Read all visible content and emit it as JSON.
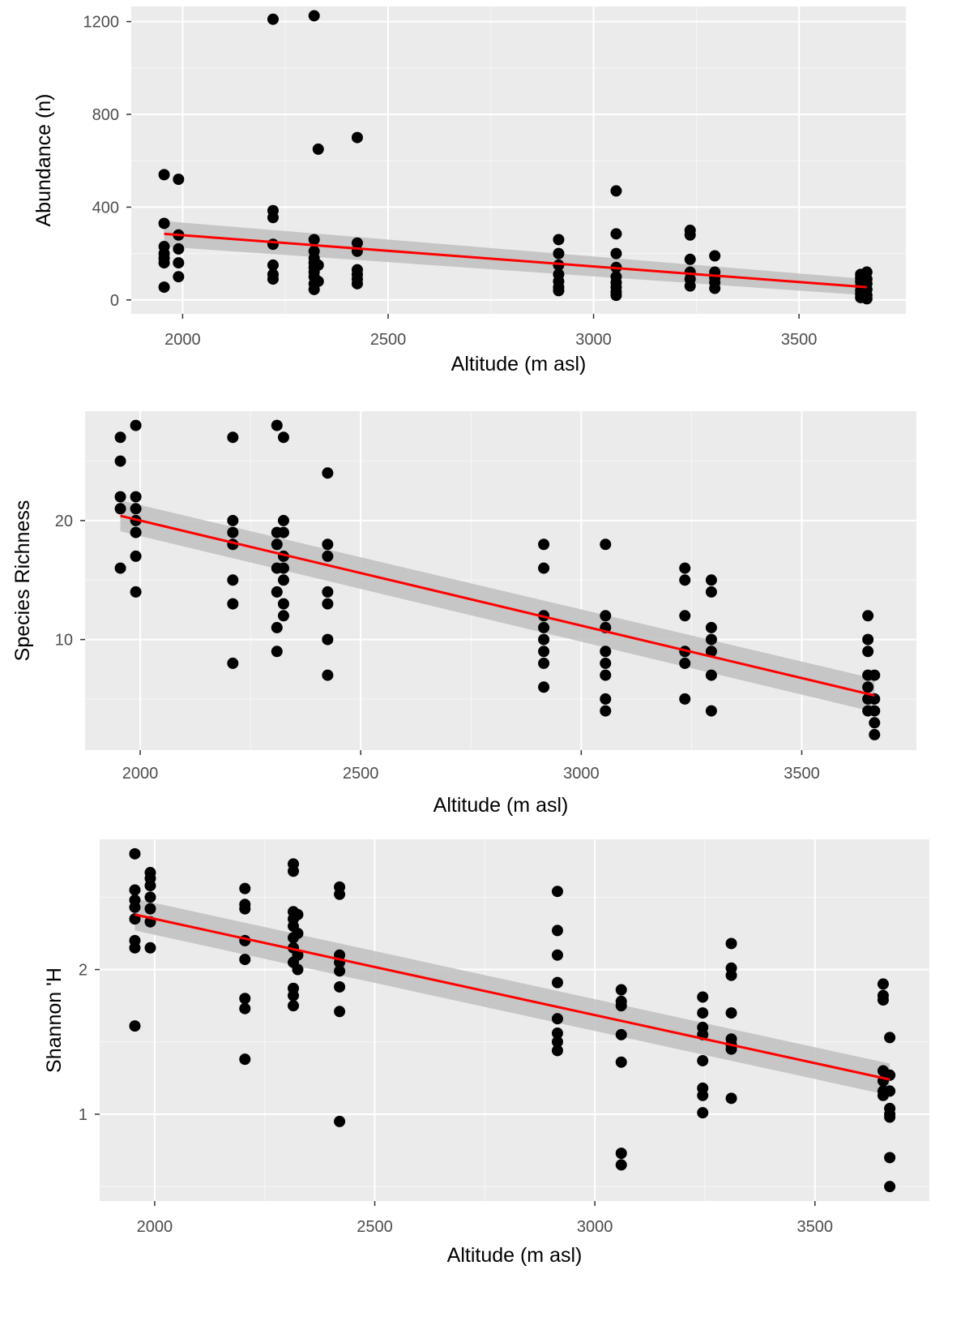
{
  "colors": {
    "panel_bg": "#ebebeb",
    "grid_major": "#ffffff",
    "point": "#000000",
    "fit_line": "#ff0000",
    "ci_band": "#bfbfbf",
    "tick_text": "#4d4d4d",
    "axis_title": "#000000"
  },
  "chart_data": [
    {
      "type": "scatter",
      "title": "",
      "xlabel": "Altitude (m asl)",
      "ylabel": "Abundance (n)",
      "xlim": [
        1875,
        3760
      ],
      "ylim": [
        -60,
        1265
      ],
      "x_ticks": [
        2000,
        2500,
        3000,
        3500
      ],
      "y_ticks": [
        0,
        400,
        800,
        1200
      ],
      "x_tick_labels": [
        "2000",
        "2500",
        "3000",
        "3500"
      ],
      "y_tick_labels": [
        "0",
        "400",
        "800",
        "1200"
      ],
      "grid": true,
      "legend": "none",
      "points": [
        [
          1955,
          540
        ],
        [
          1955,
          330
        ],
        [
          1955,
          230
        ],
        [
          1955,
          200
        ],
        [
          1955,
          180
        ],
        [
          1955,
          160
        ],
        [
          1955,
          55
        ],
        [
          1990,
          520
        ],
        [
          1990,
          280
        ],
        [
          1990,
          220
        ],
        [
          1990,
          160
        ],
        [
          1990,
          100
        ],
        [
          2220,
          1210
        ],
        [
          2220,
          385
        ],
        [
          2220,
          355
        ],
        [
          2220,
          240
        ],
        [
          2220,
          150
        ],
        [
          2220,
          110
        ],
        [
          2220,
          90
        ],
        [
          2320,
          1225
        ],
        [
          2320,
          260
        ],
        [
          2320,
          210
        ],
        [
          2320,
          180
        ],
        [
          2320,
          160
        ],
        [
          2320,
          140
        ],
        [
          2320,
          120
        ],
        [
          2320,
          100
        ],
        [
          2320,
          70
        ],
        [
          2320,
          45
        ],
        [
          2330,
          650
        ],
        [
          2330,
          150
        ],
        [
          2330,
          80
        ],
        [
          2425,
          700
        ],
        [
          2425,
          245
        ],
        [
          2425,
          210
        ],
        [
          2425,
          130
        ],
        [
          2425,
          110
        ],
        [
          2425,
          90
        ],
        [
          2425,
          70
        ],
        [
          2915,
          260
        ],
        [
          2915,
          200
        ],
        [
          2915,
          150
        ],
        [
          2915,
          110
        ],
        [
          2915,
          80
        ],
        [
          2915,
          55
        ],
        [
          2915,
          40
        ],
        [
          3055,
          470
        ],
        [
          3055,
          285
        ],
        [
          3055,
          200
        ],
        [
          3055,
          140
        ],
        [
          3055,
          100
        ],
        [
          3055,
          75
        ],
        [
          3055,
          55
        ],
        [
          3055,
          35
        ],
        [
          3055,
          20
        ],
        [
          3235,
          300
        ],
        [
          3235,
          280
        ],
        [
          3235,
          175
        ],
        [
          3235,
          120
        ],
        [
          3235,
          90
        ],
        [
          3235,
          60
        ],
        [
          3295,
          190
        ],
        [
          3295,
          120
        ],
        [
          3295,
          95
        ],
        [
          3295,
          75
        ],
        [
          3295,
          50
        ],
        [
          3650,
          110
        ],
        [
          3650,
          95
        ],
        [
          3650,
          80
        ],
        [
          3650,
          60
        ],
        [
          3650,
          40
        ],
        [
          3650,
          25
        ],
        [
          3650,
          10
        ],
        [
          3665,
          120
        ],
        [
          3665,
          90
        ],
        [
          3665,
          70
        ],
        [
          3665,
          45
        ],
        [
          3665,
          20
        ],
        [
          3665,
          5
        ]
      ],
      "fit": {
        "x": [
          1955,
          3665
        ],
        "y": [
          285,
          55
        ]
      },
      "ci": {
        "lower": [
          230,
          20
        ],
        "upper": [
          340,
          90
        ]
      }
    },
    {
      "type": "scatter",
      "title": "",
      "xlabel": "Altitude (m asl)",
      "ylabel": "Species Richness",
      "xlim": [
        1875,
        3760
      ],
      "ylim": [
        0.7,
        29.2
      ],
      "x_ticks": [
        2000,
        2500,
        3000,
        3500
      ],
      "y_ticks": [
        10,
        20
      ],
      "x_tick_labels": [
        "2000",
        "2500",
        "3000",
        "3500"
      ],
      "y_tick_labels": [
        "10",
        "20"
      ],
      "grid": true,
      "legend": "none",
      "points": [
        [
          1955,
          27
        ],
        [
          1955,
          25
        ],
        [
          1955,
          22
        ],
        [
          1955,
          21
        ],
        [
          1955,
          16
        ],
        [
          1990,
          28
        ],
        [
          1990,
          22
        ],
        [
          1990,
          21
        ],
        [
          1990,
          20
        ],
        [
          1990,
          19
        ],
        [
          1990,
          17
        ],
        [
          1990,
          14
        ],
        [
          2210,
          27
        ],
        [
          2210,
          20
        ],
        [
          2210,
          19
        ],
        [
          2210,
          18
        ],
        [
          2210,
          15
        ],
        [
          2210,
          13
        ],
        [
          2210,
          8
        ],
        [
          2310,
          28
        ],
        [
          2310,
          19
        ],
        [
          2310,
          18
        ],
        [
          2310,
          16
        ],
        [
          2310,
          14
        ],
        [
          2310,
          11
        ],
        [
          2310,
          9
        ],
        [
          2325,
          27
        ],
        [
          2325,
          20
        ],
        [
          2325,
          19
        ],
        [
          2325,
          17
        ],
        [
          2325,
          16
        ],
        [
          2325,
          15
        ],
        [
          2325,
          13
        ],
        [
          2325,
          12
        ],
        [
          2425,
          24
        ],
        [
          2425,
          18
        ],
        [
          2425,
          17
        ],
        [
          2425,
          14
        ],
        [
          2425,
          13
        ],
        [
          2425,
          10
        ],
        [
          2425,
          7
        ],
        [
          2915,
          18
        ],
        [
          2915,
          16
        ],
        [
          2915,
          12
        ],
        [
          2915,
          11
        ],
        [
          2915,
          10
        ],
        [
          2915,
          9
        ],
        [
          2915,
          8
        ],
        [
          2915,
          6
        ],
        [
          3055,
          18
        ],
        [
          3055,
          12
        ],
        [
          3055,
          11
        ],
        [
          3055,
          9
        ],
        [
          3055,
          8
        ],
        [
          3055,
          7
        ],
        [
          3055,
          5
        ],
        [
          3055,
          4
        ],
        [
          3235,
          16
        ],
        [
          3235,
          15
        ],
        [
          3235,
          12
        ],
        [
          3235,
          9
        ],
        [
          3235,
          8
        ],
        [
          3235,
          5
        ],
        [
          3295,
          15
        ],
        [
          3295,
          14
        ],
        [
          3295,
          11
        ],
        [
          3295,
          10
        ],
        [
          3295,
          9
        ],
        [
          3295,
          7
        ],
        [
          3295,
          4
        ],
        [
          3650,
          12
        ],
        [
          3650,
          10
        ],
        [
          3650,
          9
        ],
        [
          3650,
          7
        ],
        [
          3650,
          6
        ],
        [
          3650,
          5
        ],
        [
          3650,
          4
        ],
        [
          3665,
          7
        ],
        [
          3665,
          5
        ],
        [
          3665,
          4
        ],
        [
          3665,
          3
        ],
        [
          3665,
          2
        ]
      ],
      "fit": {
        "x": [
          1955,
          3665
        ],
        "y": [
          20.4,
          5.3
        ]
      },
      "ci": {
        "lower": [
          19.1,
          3.9
        ],
        "upper": [
          21.7,
          6.7
        ]
      }
    },
    {
      "type": "scatter",
      "title": "",
      "xlabel": "Altitude (m asl)",
      "ylabel": "Shannon 'H",
      "xlim": [
        1875,
        3760
      ],
      "ylim": [
        0.4,
        2.9
      ],
      "x_ticks": [
        2000,
        2500,
        3000,
        3500
      ],
      "y_ticks": [
        1,
        2
      ],
      "x_tick_labels": [
        "2000",
        "2500",
        "3000",
        "3500"
      ],
      "y_tick_labels": [
        "1",
        "2"
      ],
      "grid": true,
      "legend": "none",
      "points": [
        [
          1955,
          2.8
        ],
        [
          1955,
          2.55
        ],
        [
          1955,
          2.48
        ],
        [
          1955,
          2.43
        ],
        [
          1955,
          2.35
        ],
        [
          1955,
          2.2
        ],
        [
          1955,
          2.15
        ],
        [
          1955,
          1.61
        ],
        [
          1990,
          2.67
        ],
        [
          1990,
          2.63
        ],
        [
          1990,
          2.58
        ],
        [
          1990,
          2.5
        ],
        [
          1990,
          2.42
        ],
        [
          1990,
          2.33
        ],
        [
          1990,
          2.15
        ],
        [
          2205,
          2.56
        ],
        [
          2205,
          2.45
        ],
        [
          2205,
          2.42
        ],
        [
          2205,
          2.2
        ],
        [
          2205,
          2.07
        ],
        [
          2205,
          1.8
        ],
        [
          2205,
          1.73
        ],
        [
          2205,
          1.38
        ],
        [
          2315,
          2.73
        ],
        [
          2315,
          2.68
        ],
        [
          2315,
          2.4
        ],
        [
          2315,
          2.35
        ],
        [
          2315,
          2.3
        ],
        [
          2315,
          2.22
        ],
        [
          2315,
          2.15
        ],
        [
          2315,
          2.05
        ],
        [
          2315,
          1.87
        ],
        [
          2315,
          1.82
        ],
        [
          2315,
          1.75
        ],
        [
          2325,
          2.38
        ],
        [
          2325,
          2.25
        ],
        [
          2325,
          2.1
        ],
        [
          2325,
          2.0
        ],
        [
          2420,
          2.57
        ],
        [
          2420,
          2.52
        ],
        [
          2420,
          2.1
        ],
        [
          2420,
          2.05
        ],
        [
          2420,
          1.99
        ],
        [
          2420,
          1.88
        ],
        [
          2420,
          1.71
        ],
        [
          2420,
          0.95
        ],
        [
          2915,
          2.54
        ],
        [
          2915,
          2.27
        ],
        [
          2915,
          2.1
        ],
        [
          2915,
          1.91
        ],
        [
          2915,
          1.66
        ],
        [
          2915,
          1.56
        ],
        [
          2915,
          1.5
        ],
        [
          2915,
          1.44
        ],
        [
          3060,
          1.86
        ],
        [
          3060,
          1.78
        ],
        [
          3060,
          1.75
        ],
        [
          3060,
          1.55
        ],
        [
          3060,
          1.36
        ],
        [
          3060,
          0.73
        ],
        [
          3060,
          0.65
        ],
        [
          3245,
          1.81
        ],
        [
          3245,
          1.7
        ],
        [
          3245,
          1.6
        ],
        [
          3245,
          1.55
        ],
        [
          3245,
          1.37
        ],
        [
          3245,
          1.18
        ],
        [
          3245,
          1.13
        ],
        [
          3245,
          1.01
        ],
        [
          3310,
          2.18
        ],
        [
          3310,
          2.01
        ],
        [
          3310,
          1.96
        ],
        [
          3310,
          1.7
        ],
        [
          3310,
          1.52
        ],
        [
          3310,
          1.48
        ],
        [
          3310,
          1.45
        ],
        [
          3310,
          1.11
        ],
        [
          3655,
          1.9
        ],
        [
          3655,
          1.82
        ],
        [
          3655,
          1.79
        ],
        [
          3655,
          1.3
        ],
        [
          3655,
          1.23
        ],
        [
          3655,
          1.16
        ],
        [
          3655,
          1.13
        ],
        [
          3670,
          1.53
        ],
        [
          3670,
          1.27
        ],
        [
          3670,
          1.16
        ],
        [
          3670,
          1.04
        ],
        [
          3670,
          1.0
        ],
        [
          3670,
          0.98
        ],
        [
          3670,
          0.7
        ],
        [
          3670,
          0.5
        ]
      ],
      "fit": {
        "x": [
          1955,
          3670
        ],
        "y": [
          2.38,
          1.24
        ]
      },
      "ci": {
        "lower": [
          2.27,
          1.13
        ],
        "upper": [
          2.49,
          1.35
        ]
      }
    }
  ]
}
